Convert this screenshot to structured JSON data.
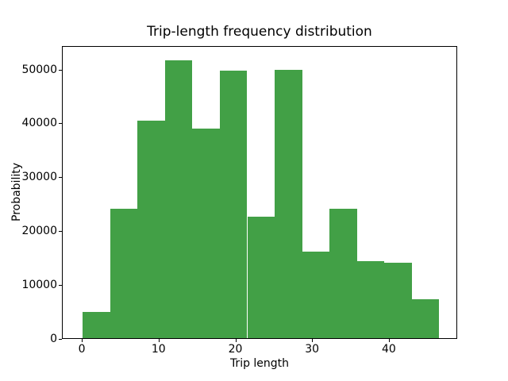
{
  "figure": {
    "background": "#ffffff",
    "text_color": "#000000"
  },
  "chart_data": {
    "type": "bar",
    "subtype": "histogram",
    "title": "Trip-length frequency distribution",
    "xlabel": "Trip length",
    "ylabel": "Probability",
    "bar_color": "#42a046",
    "bin_edges": [
      0,
      3.57,
      7.15,
      10.72,
      14.29,
      17.87,
      21.44,
      25.01,
      28.58,
      32.16,
      35.73,
      39.3,
      42.88,
      46.45
    ],
    "values": [
      5100,
      24350,
      40700,
      51800,
      39250,
      49950,
      22900,
      50050,
      16400,
      24350,
      14650,
      14250,
      7500
    ],
    "xlim": [
      -2.6,
      48.9
    ],
    "ylim": [
      0,
      54350
    ],
    "x_ticks": [
      0,
      10,
      20,
      30,
      40
    ],
    "y_ticks": [
      0,
      10000,
      20000,
      30000,
      40000,
      50000
    ],
    "grid": false,
    "legend_position": "none"
  }
}
